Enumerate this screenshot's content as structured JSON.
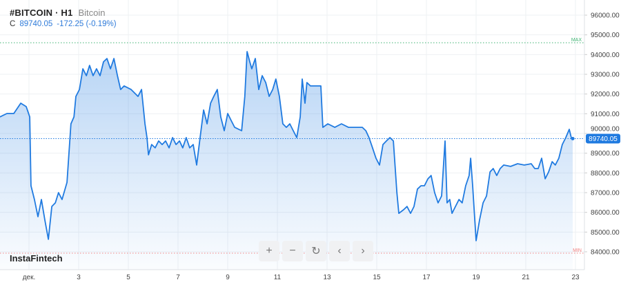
{
  "header": {
    "symbol": "#BITCOIN · H1",
    "name": "Bitcoin"
  },
  "quote": {
    "label": "C",
    "close": "89740.05",
    "change": "-172.25 (-0.19%)"
  },
  "brand": "InstaFintech",
  "controls": [
    {
      "name": "zoom-in-button",
      "icon": "+"
    },
    {
      "name": "zoom-out-button",
      "icon": "−"
    },
    {
      "name": "reset-button",
      "icon": "↻"
    },
    {
      "name": "scroll-left-button",
      "icon": "‹"
    },
    {
      "name": "scroll-right-button",
      "icon": "›"
    }
  ],
  "colors": {
    "line": "#1f7ae0",
    "max": "#3cb371",
    "min": "#f08080",
    "last": "#1f7ae0"
  },
  "chart_data": {
    "type": "area",
    "title": "",
    "xlabel": "",
    "ylabel": "",
    "x_tick_labels": [
      {
        "day": 1,
        "label": "дек."
      },
      {
        "day": 3,
        "label": "3"
      },
      {
        "day": 5,
        "label": "5"
      },
      {
        "day": 7,
        "label": "7"
      },
      {
        "day": 9,
        "label": "9"
      },
      {
        "day": 11,
        "label": "11"
      },
      {
        "day": 13,
        "label": "13"
      },
      {
        "day": 15,
        "label": "15"
      },
      {
        "day": 17,
        "label": "17"
      },
      {
        "day": 19,
        "label": "19"
      },
      {
        "day": 21,
        "label": "21"
      },
      {
        "day": 23,
        "label": "23"
      }
    ],
    "y_ticks": [
      84000,
      85000,
      86000,
      87000,
      88000,
      89000,
      90000,
      91000,
      92000,
      93000,
      94000,
      95000,
      96000
    ],
    "y_tick_labels": [
      "84000.00",
      "85000.00",
      "86000.00",
      "87000.00",
      "88000.00",
      "89000.00",
      "90000.00",
      "91000.00",
      "92000.00",
      "93000.00",
      "94000.00",
      "95000.00",
      "96000.00"
    ],
    "ylim": [
      83300,
      96800
    ],
    "grid": true,
    "last_value": 89740.05,
    "last_label": "89740.05",
    "max_line": {
      "value": 94600,
      "label": "MAX"
    },
    "min_line": {
      "value": 83930,
      "label": "MIN"
    },
    "points": [
      [
        -0.17,
        90840
      ],
      [
        0.11,
        91010
      ],
      [
        0.39,
        91010
      ],
      [
        0.67,
        91535
      ],
      [
        0.89,
        91360
      ],
      [
        1.03,
        90840
      ],
      [
        1.08,
        87350
      ],
      [
        1.22,
        86650
      ],
      [
        1.36,
        85780
      ],
      [
        1.5,
        86650
      ],
      [
        1.64,
        85610
      ],
      [
        1.78,
        84630
      ],
      [
        1.92,
        86300
      ],
      [
        2.06,
        86480
      ],
      [
        2.19,
        87000
      ],
      [
        2.33,
        86650
      ],
      [
        2.53,
        87520
      ],
      [
        2.69,
        90490
      ],
      [
        2.81,
        90840
      ],
      [
        2.89,
        91880
      ],
      [
        3.03,
        92230
      ],
      [
        3.17,
        93280
      ],
      [
        3.31,
        92930
      ],
      [
        3.44,
        93450
      ],
      [
        3.58,
        92930
      ],
      [
        3.72,
        93280
      ],
      [
        3.86,
        92930
      ],
      [
        4.0,
        93630
      ],
      [
        4.14,
        93800
      ],
      [
        4.28,
        93280
      ],
      [
        4.42,
        93800
      ],
      [
        4.56,
        92930
      ],
      [
        4.69,
        92230
      ],
      [
        4.83,
        92410
      ],
      [
        5.11,
        92230
      ],
      [
        5.39,
        91880
      ],
      [
        5.53,
        92230
      ],
      [
        5.67,
        90490
      ],
      [
        5.75,
        89790
      ],
      [
        5.81,
        88920
      ],
      [
        5.94,
        89440
      ],
      [
        6.08,
        89270
      ],
      [
        6.22,
        89620
      ],
      [
        6.36,
        89440
      ],
      [
        6.5,
        89620
      ],
      [
        6.64,
        89270
      ],
      [
        6.78,
        89790
      ],
      [
        6.92,
        89440
      ],
      [
        7.06,
        89620
      ],
      [
        7.19,
        89270
      ],
      [
        7.33,
        89790
      ],
      [
        7.47,
        89270
      ],
      [
        7.61,
        89440
      ],
      [
        7.75,
        88400
      ],
      [
        7.89,
        89790
      ],
      [
        8.03,
        91190
      ],
      [
        8.17,
        90490
      ],
      [
        8.31,
        91535
      ],
      [
        8.44,
        91880
      ],
      [
        8.58,
        92230
      ],
      [
        8.72,
        90840
      ],
      [
        8.86,
        90140
      ],
      [
        9.0,
        91010
      ],
      [
        9.14,
        90660
      ],
      [
        9.28,
        90310
      ],
      [
        9.56,
        90140
      ],
      [
        9.69,
        91880
      ],
      [
        9.78,
        94150
      ],
      [
        9.89,
        93630
      ],
      [
        9.97,
        93280
      ],
      [
        10.11,
        93800
      ],
      [
        10.25,
        92230
      ],
      [
        10.39,
        92930
      ],
      [
        10.53,
        92580
      ],
      [
        10.67,
        91880
      ],
      [
        10.81,
        92230
      ],
      [
        10.94,
        92760
      ],
      [
        11.08,
        91880
      ],
      [
        11.22,
        90490
      ],
      [
        11.36,
        90310
      ],
      [
        11.5,
        90490
      ],
      [
        11.64,
        90140
      ],
      [
        11.78,
        89790
      ],
      [
        11.92,
        90840
      ],
      [
        12.0,
        92760
      ],
      [
        12.11,
        91535
      ],
      [
        12.19,
        92580
      ],
      [
        12.33,
        92410
      ],
      [
        12.61,
        92410
      ],
      [
        12.75,
        92410
      ],
      [
        12.83,
        90310
      ],
      [
        13.03,
        90490
      ],
      [
        13.31,
        90310
      ],
      [
        13.58,
        90490
      ],
      [
        13.86,
        90310
      ],
      [
        14.14,
        90310
      ],
      [
        14.42,
        90310
      ],
      [
        14.56,
        90140
      ],
      [
        14.69,
        89790
      ],
      [
        14.83,
        89270
      ],
      [
        14.97,
        88745
      ],
      [
        15.11,
        88400
      ],
      [
        15.25,
        89440
      ],
      [
        15.39,
        89620
      ],
      [
        15.53,
        89790
      ],
      [
        15.67,
        89620
      ],
      [
        15.81,
        87000
      ],
      [
        15.89,
        85950
      ],
      [
        16.08,
        86130
      ],
      [
        16.22,
        86300
      ],
      [
        16.36,
        85950
      ],
      [
        16.5,
        86300
      ],
      [
        16.64,
        87180
      ],
      [
        16.78,
        87350
      ],
      [
        16.92,
        87350
      ],
      [
        17.06,
        87700
      ],
      [
        17.19,
        87870
      ],
      [
        17.33,
        87000
      ],
      [
        17.47,
        86480
      ],
      [
        17.61,
        86830
      ],
      [
        17.75,
        89620
      ],
      [
        17.83,
        86480
      ],
      [
        17.94,
        86650
      ],
      [
        18.03,
        85950
      ],
      [
        18.17,
        86300
      ],
      [
        18.31,
        86650
      ],
      [
        18.44,
        86480
      ],
      [
        18.58,
        87350
      ],
      [
        18.72,
        87870
      ],
      [
        18.78,
        88745
      ],
      [
        18.86,
        87350
      ],
      [
        19.0,
        84560
      ],
      [
        19.14,
        85610
      ],
      [
        19.28,
        86480
      ],
      [
        19.42,
        86830
      ],
      [
        19.56,
        88050
      ],
      [
        19.69,
        88220
      ],
      [
        19.83,
        87870
      ],
      [
        19.97,
        88220
      ],
      [
        20.11,
        88400
      ],
      [
        20.39,
        88330
      ],
      [
        20.67,
        88465
      ],
      [
        20.94,
        88400
      ],
      [
        21.22,
        88465
      ],
      [
        21.36,
        88220
      ],
      [
        21.5,
        88220
      ],
      [
        21.64,
        88745
      ],
      [
        21.78,
        87700
      ],
      [
        21.92,
        88050
      ],
      [
        22.06,
        88570
      ],
      [
        22.19,
        88400
      ],
      [
        22.33,
        88745
      ],
      [
        22.47,
        89440
      ],
      [
        22.61,
        89790
      ],
      [
        22.75,
        90210
      ],
      [
        22.83,
        89790
      ],
      [
        22.89,
        89740
      ]
    ]
  }
}
